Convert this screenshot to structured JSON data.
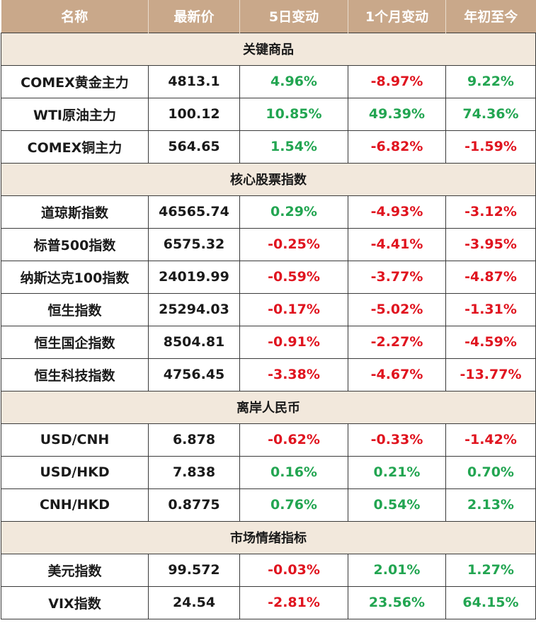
{
  "header": {
    "columns": [
      "名称",
      "最新价",
      "5日变动",
      "1个月变动",
      "年初至今"
    ]
  },
  "colors": {
    "header_bg": "#c9a88a",
    "section_bg": "#f2e8dc",
    "positive": "#22a551",
    "negative": "#e0141f"
  },
  "sections": [
    {
      "title": "关键商品",
      "rows": [
        {
          "name": "COMEX黄金主力",
          "price": "4813.1",
          "d5": "4.96%",
          "m1": "-8.97%",
          "ytd": "9.22%"
        },
        {
          "name": "WTI原油主力",
          "price": "100.12",
          "d5": "10.85%",
          "m1": "49.39%",
          "ytd": "74.36%"
        },
        {
          "name": "COMEX铜主力",
          "price": "564.65",
          "d5": "1.54%",
          "m1": "-6.82%",
          "ytd": "-1.59%"
        }
      ]
    },
    {
      "title": "核心股票指数",
      "rows": [
        {
          "name": "道琼斯指数",
          "price": "46565.74",
          "d5": "0.29%",
          "m1": "-4.93%",
          "ytd": "-3.12%"
        },
        {
          "name": "标普500指数",
          "price": "6575.32",
          "d5": "-0.25%",
          "m1": "-4.41%",
          "ytd": "-3.95%"
        },
        {
          "name": "纳斯达克100指数",
          "price": "24019.99",
          "d5": "-0.59%",
          "m1": "-3.77%",
          "ytd": "-4.87%"
        },
        {
          "name": "恒生指数",
          "price": "25294.03",
          "d5": "-0.17%",
          "m1": "-5.02%",
          "ytd": "-1.31%"
        },
        {
          "name": "恒生国企指数",
          "price": "8504.81",
          "d5": "-0.91%",
          "m1": "-2.27%",
          "ytd": "-4.59%"
        },
        {
          "name": "恒生科技指数",
          "price": "4756.45",
          "d5": "-3.38%",
          "m1": "-4.67%",
          "ytd": "-13.77%"
        }
      ]
    },
    {
      "title": "离岸人民币",
      "rows": [
        {
          "name": "USD/CNH",
          "price": "6.878",
          "d5": "-0.62%",
          "m1": "-0.33%",
          "ytd": "-1.42%"
        },
        {
          "name": "USD/HKD",
          "price": "7.838",
          "d5": "0.16%",
          "m1": "0.21%",
          "ytd": "0.70%"
        },
        {
          "name": "CNH/HKD",
          "price": "0.8775",
          "d5": "0.76%",
          "m1": "0.54%",
          "ytd": "2.13%"
        }
      ]
    },
    {
      "title": "市场情绪指标",
      "rows": [
        {
          "name": "美元指数",
          "price": "99.572",
          "d5": "-0.03%",
          "m1": "2.01%",
          "ytd": "1.27%"
        },
        {
          "name": "VIX指数",
          "price": "24.54",
          "d5": "-2.81%",
          "m1": "23.56%",
          "ytd": "64.15%"
        }
      ]
    }
  ]
}
